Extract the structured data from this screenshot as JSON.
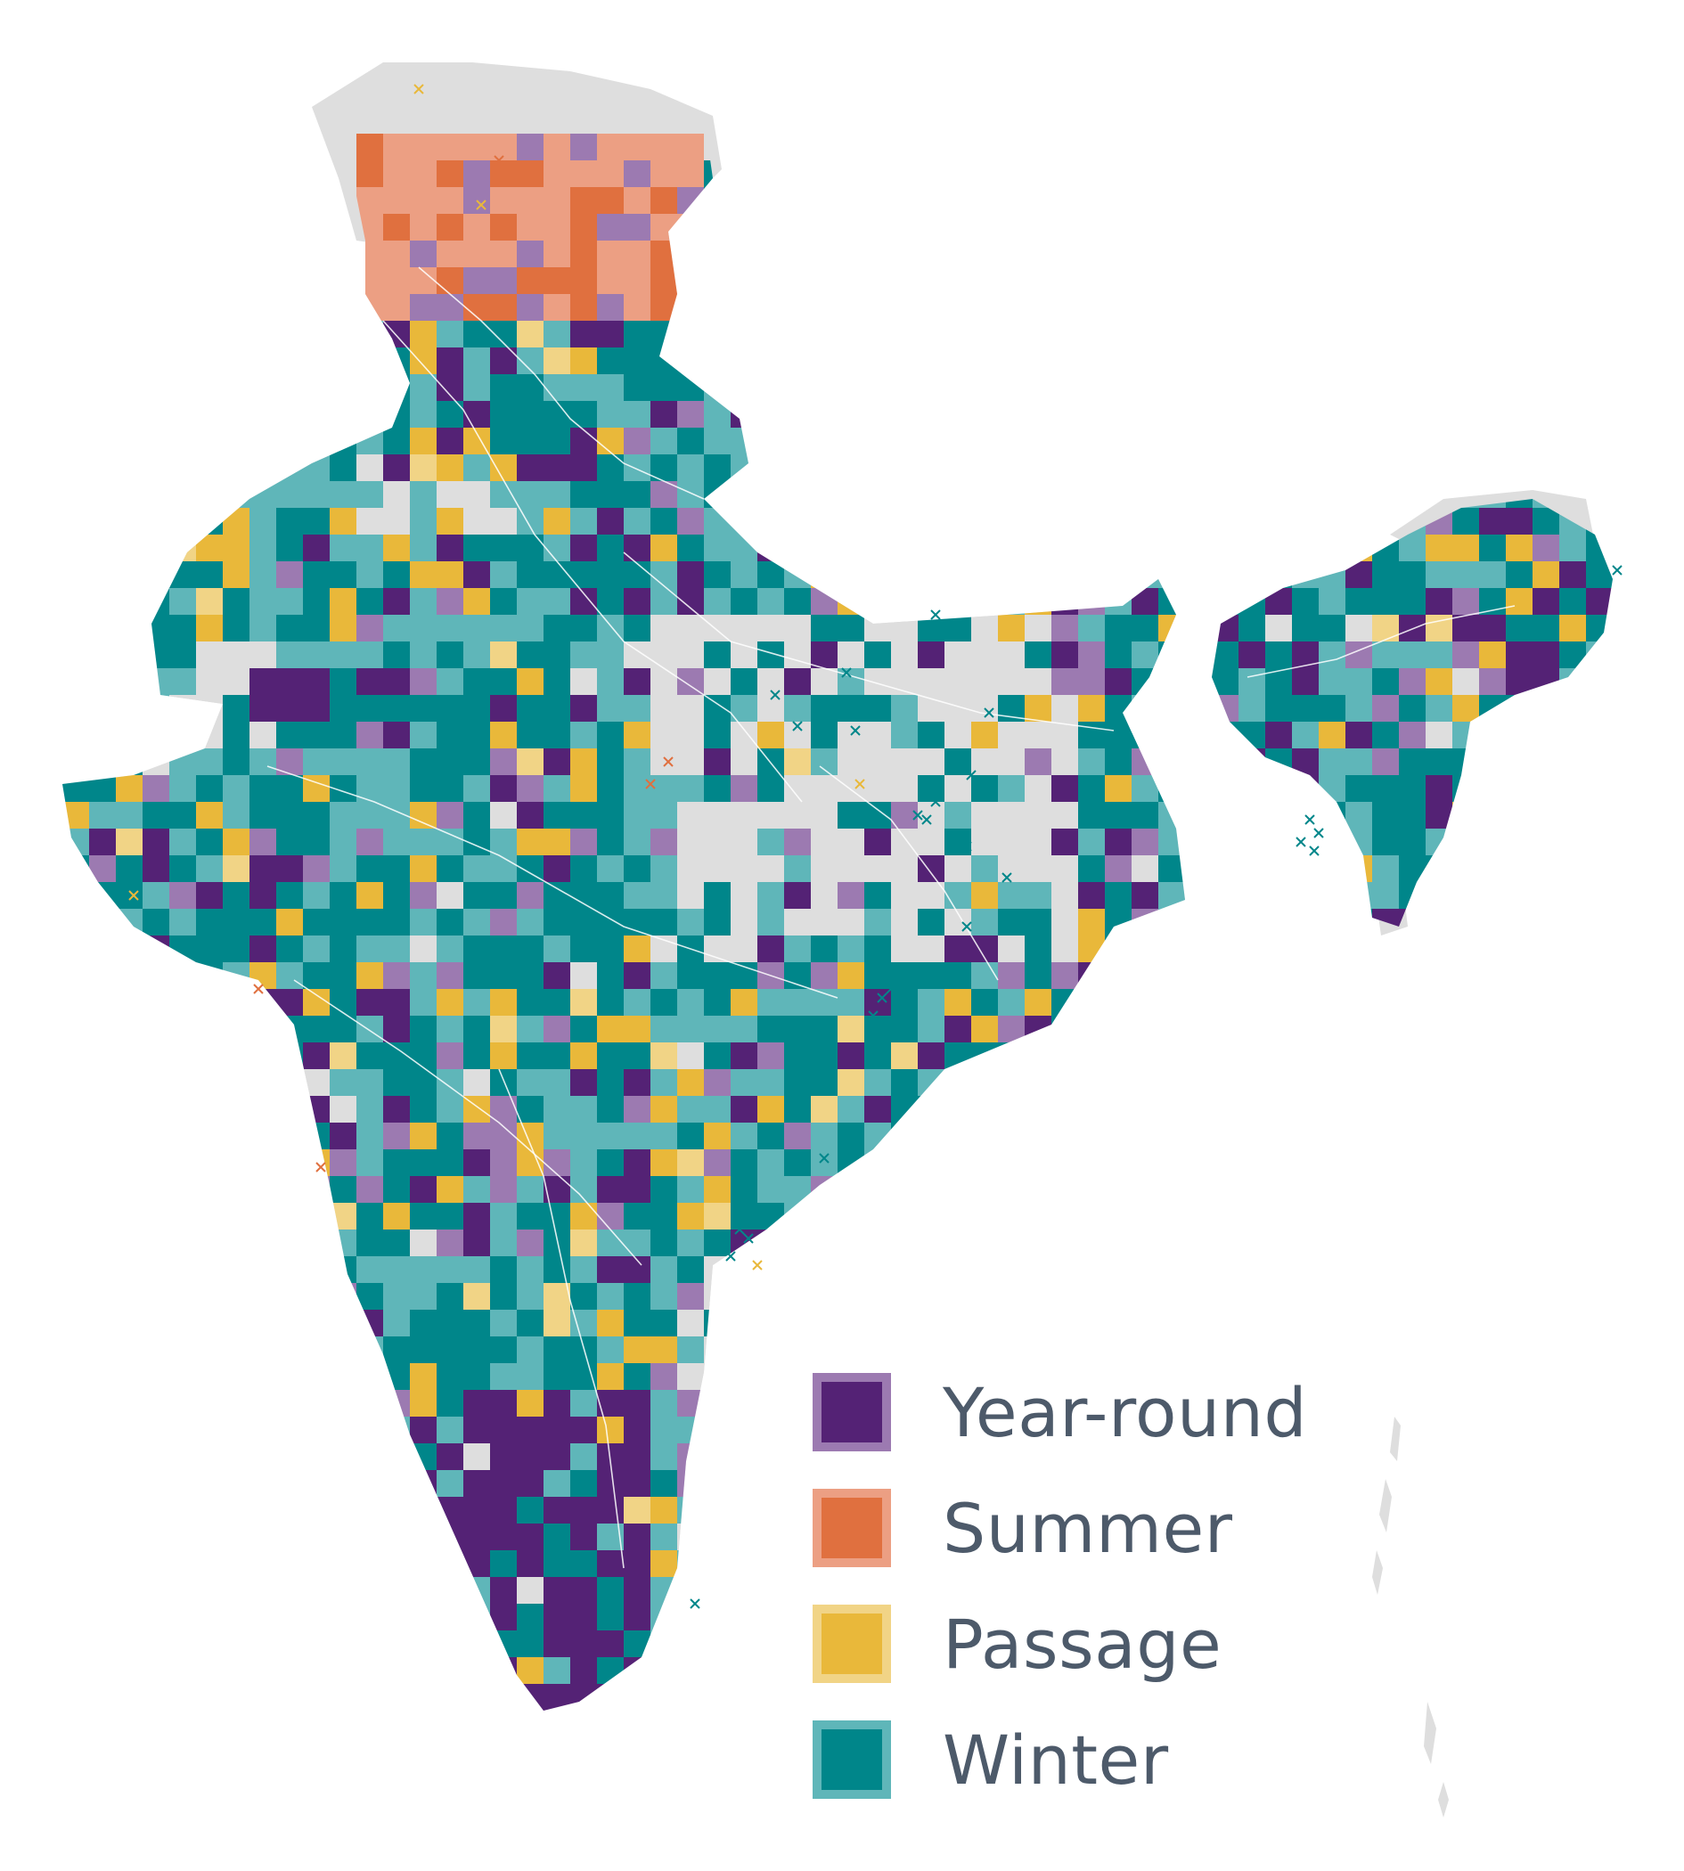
{
  "map": {
    "region_shown": "India",
    "legend_title": "",
    "colors": {
      "year_round": "#542275",
      "year_round_light": "#9c7ab1",
      "summer": "#e0703f",
      "summer_light": "#ec9f83",
      "passage": "#e9b83a",
      "passage_light": "#f1d486",
      "winter": "#00868a",
      "winter_light": "#5fb6b9",
      "land_no_data": "#dedede",
      "boundary": "#ffffff"
    },
    "legend": [
      {
        "key": "year_round",
        "label": "Year-round",
        "color": "#542275",
        "light": "#9c7ab1"
      },
      {
        "key": "summer",
        "label": "Summer",
        "color": "#e0703f",
        "light": "#ec9f83"
      },
      {
        "key": "passage",
        "label": "Passage",
        "color": "#e9b83a",
        "light": "#f1d486"
      },
      {
        "key": "winter",
        "label": "Winter",
        "color": "#00868a",
        "light": "#5fb6b9"
      }
    ],
    "marker_icon": "cross-marker-icon"
  }
}
